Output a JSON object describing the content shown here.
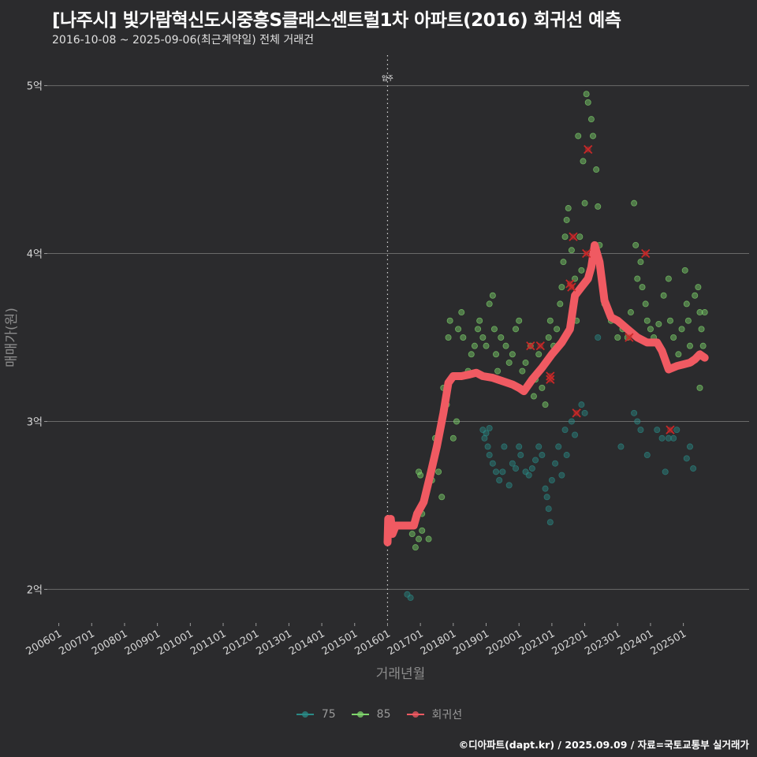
{
  "header": {
    "title": "[나주시] 빛가람혁신도시중흥S클래스센트럴1차 아파트(2016) 회귀선 예측",
    "subtitle": "2016-10-08 ~ 2025-09-06(최근계약일) 전체 거래건"
  },
  "caption": "©디아파트(dapt.kr) / 2025.09.09 / 자료=국토교통부 실거래가",
  "legend": {
    "items": [
      {
        "label": "75",
        "color": "#2a8a86"
      },
      {
        "label": "85",
        "color": "#7fd66c"
      },
      {
        "label": "회귀선",
        "color": "#f05a62"
      }
    ]
  },
  "chart_data": {
    "type": "scatter",
    "title": "[나주시] 빛가람혁신도시중흥S클래스센트럴1차 아파트(2016) 회귀선 예측",
    "xlabel": "거래년월",
    "ylabel": "매매가(원)",
    "x_ticks": [
      "200601",
      "200701",
      "200801",
      "200901",
      "201001",
      "201101",
      "201201",
      "201301",
      "201401",
      "201501",
      "201601",
      "201701",
      "201801",
      "201901",
      "202001",
      "202101",
      "202201",
      "202301",
      "202401",
      "202501"
    ],
    "y_ticks": [
      {
        "value": 2,
        "label": "2억"
      },
      {
        "value": 3,
        "label": "3억"
      },
      {
        "value": 4,
        "label": "4억"
      },
      {
        "value": 5,
        "label": "5억"
      }
    ],
    "xlim": [
      2005.65,
      2027.0
    ],
    "ylim": [
      1.8,
      5.2
    ],
    "annotation": {
      "label": "입주",
      "x": 2016.0
    },
    "colors": {
      "75": "#2a8a86",
      "85": "#7fd66c",
      "regression": "#f05a62",
      "marker": "#c82828"
    },
    "series": [
      {
        "name": "75",
        "points": [
          [
            2016.6,
            1.97
          ],
          [
            2016.7,
            1.95
          ],
          [
            2018.9,
            2.95
          ],
          [
            2018.95,
            2.9
          ],
          [
            2019.0,
            2.93
          ],
          [
            2019.05,
            2.85
          ],
          [
            2019.1,
            2.96
          ],
          [
            2019.1,
            2.8
          ],
          [
            2019.2,
            2.75
          ],
          [
            2019.3,
            2.7
          ],
          [
            2019.4,
            2.65
          ],
          [
            2019.5,
            2.7
          ],
          [
            2019.55,
            2.85
          ],
          [
            2019.7,
            2.62
          ],
          [
            2019.8,
            2.75
          ],
          [
            2019.9,
            2.72
          ],
          [
            2020.0,
            2.85
          ],
          [
            2020.05,
            2.8
          ],
          [
            2020.2,
            2.7
          ],
          [
            2020.3,
            2.68
          ],
          [
            2020.4,
            2.72
          ],
          [
            2020.5,
            2.77
          ],
          [
            2020.6,
            2.85
          ],
          [
            2020.7,
            2.8
          ],
          [
            2020.8,
            2.6
          ],
          [
            2020.85,
            2.55
          ],
          [
            2020.9,
            2.48
          ],
          [
            2020.95,
            2.4
          ],
          [
            2021.0,
            2.65
          ],
          [
            2021.1,
            2.75
          ],
          [
            2021.2,
            2.85
          ],
          [
            2021.3,
            2.68
          ],
          [
            2021.4,
            2.95
          ],
          [
            2021.45,
            2.8
          ],
          [
            2021.6,
            3.0
          ],
          [
            2021.7,
            2.92
          ],
          [
            2021.9,
            3.1
          ],
          [
            2022.0,
            3.05
          ],
          [
            2022.4,
            3.5
          ],
          [
            2023.1,
            2.85
          ],
          [
            2023.5,
            3.05
          ],
          [
            2023.6,
            3.0
          ],
          [
            2023.7,
            2.95
          ],
          [
            2023.9,
            2.8
          ],
          [
            2024.2,
            2.95
          ],
          [
            2024.35,
            2.9
          ],
          [
            2024.45,
            2.7
          ],
          [
            2024.55,
            2.9
          ],
          [
            2024.7,
            2.9
          ],
          [
            2024.8,
            2.95
          ],
          [
            2025.1,
            2.78
          ],
          [
            2025.2,
            2.85
          ],
          [
            2025.3,
            2.72
          ]
        ]
      },
      {
        "name": "85",
        "points": [
          [
            2016.75,
            2.33
          ],
          [
            2016.85,
            2.25
          ],
          [
            2016.95,
            2.3
          ],
          [
            2016.95,
            2.7
          ],
          [
            2017.0,
            2.68
          ],
          [
            2017.05,
            2.45
          ],
          [
            2017.05,
            2.35
          ],
          [
            2017.15,
            2.55
          ],
          [
            2017.25,
            2.3
          ],
          [
            2017.35,
            2.65
          ],
          [
            2017.45,
            2.9
          ],
          [
            2017.55,
            2.7
          ],
          [
            2017.6,
            2.95
          ],
          [
            2017.65,
            2.55
          ],
          [
            2017.7,
            3.2
          ],
          [
            2017.8,
            3.1
          ],
          [
            2017.85,
            3.5
          ],
          [
            2017.9,
            3.6
          ],
          [
            2018.0,
            2.9
          ],
          [
            2018.1,
            3.0
          ],
          [
            2018.15,
            3.55
          ],
          [
            2018.25,
            3.65
          ],
          [
            2018.3,
            3.5
          ],
          [
            2018.45,
            3.3
          ],
          [
            2018.55,
            3.4
          ],
          [
            2018.65,
            3.45
          ],
          [
            2018.75,
            3.55
          ],
          [
            2018.8,
            3.6
          ],
          [
            2018.9,
            3.5
          ],
          [
            2019.0,
            3.45
          ],
          [
            2019.1,
            3.7
          ],
          [
            2019.2,
            3.75
          ],
          [
            2019.25,
            3.55
          ],
          [
            2019.3,
            3.4
          ],
          [
            2019.35,
            3.3
          ],
          [
            2019.45,
            3.5
          ],
          [
            2019.6,
            3.45
          ],
          [
            2019.7,
            3.35
          ],
          [
            2019.8,
            3.4
          ],
          [
            2019.9,
            3.55
          ],
          [
            2020.0,
            3.6
          ],
          [
            2020.1,
            3.3
          ],
          [
            2020.2,
            3.35
          ],
          [
            2020.35,
            3.45
          ],
          [
            2020.45,
            3.15
          ],
          [
            2020.5,
            3.25
          ],
          [
            2020.6,
            3.4
          ],
          [
            2020.7,
            3.2
          ],
          [
            2020.8,
            3.1
          ],
          [
            2020.9,
            3.5
          ],
          [
            2020.95,
            3.6
          ],
          [
            2021.05,
            3.45
          ],
          [
            2021.15,
            3.55
          ],
          [
            2021.25,
            3.7
          ],
          [
            2021.3,
            3.8
          ],
          [
            2021.35,
            3.95
          ],
          [
            2021.4,
            4.1
          ],
          [
            2021.45,
            4.2
          ],
          [
            2021.5,
            4.27
          ],
          [
            2021.6,
            4.02
          ],
          [
            2021.7,
            3.85
          ],
          [
            2021.75,
            3.6
          ],
          [
            2021.85,
            4.1
          ],
          [
            2021.9,
            3.9
          ],
          [
            2022.0,
            4.3
          ],
          [
            2021.95,
            4.55
          ],
          [
            2021.8,
            4.7
          ],
          [
            2022.05,
            4.95
          ],
          [
            2022.1,
            4.9
          ],
          [
            2022.2,
            4.8
          ],
          [
            2022.25,
            4.7
          ],
          [
            2022.35,
            4.5
          ],
          [
            2022.4,
            4.28
          ],
          [
            2022.45,
            4.05
          ],
          [
            2022.6,
            3.7
          ],
          [
            2022.8,
            3.6
          ],
          [
            2023.0,
            3.5
          ],
          [
            2023.15,
            3.55
          ],
          [
            2023.3,
            3.5
          ],
          [
            2023.4,
            3.65
          ],
          [
            2023.5,
            4.3
          ],
          [
            2023.55,
            4.05
          ],
          [
            2023.6,
            3.85
          ],
          [
            2023.7,
            3.95
          ],
          [
            2023.75,
            3.8
          ],
          [
            2023.85,
            3.7
          ],
          [
            2023.9,
            3.6
          ],
          [
            2024.0,
            3.55
          ],
          [
            2024.1,
            3.5
          ],
          [
            2024.25,
            3.58
          ],
          [
            2024.4,
            3.75
          ],
          [
            2024.55,
            3.85
          ],
          [
            2024.6,
            3.6
          ],
          [
            2024.7,
            3.5
          ],
          [
            2024.85,
            3.4
          ],
          [
            2024.95,
            3.55
          ],
          [
            2025.05,
            3.9
          ],
          [
            2025.1,
            3.7
          ],
          [
            2025.15,
            3.6
          ],
          [
            2025.2,
            3.45
          ],
          [
            2025.25,
            3.35
          ],
          [
            2025.35,
            3.75
          ],
          [
            2025.45,
            3.8
          ],
          [
            2025.5,
            3.65
          ],
          [
            2025.55,
            3.55
          ],
          [
            2025.6,
            3.45
          ],
          [
            2025.5,
            3.2
          ],
          [
            2025.65,
            3.65
          ]
        ]
      },
      {
        "name": "회귀선",
        "points": [
          [
            2016.0,
            2.28
          ],
          [
            2016.02,
            2.42
          ],
          [
            2016.05,
            2.36
          ],
          [
            2016.1,
            2.42
          ],
          [
            2016.15,
            2.33
          ],
          [
            2016.25,
            2.38
          ],
          [
            2016.5,
            2.38
          ],
          [
            2016.8,
            2.38
          ],
          [
            2016.9,
            2.45
          ],
          [
            2017.1,
            2.52
          ],
          [
            2017.3,
            2.68
          ],
          [
            2017.5,
            2.85
          ],
          [
            2017.7,
            3.05
          ],
          [
            2017.85,
            3.23
          ],
          [
            2018.0,
            3.27
          ],
          [
            2018.25,
            3.27
          ],
          [
            2018.5,
            3.28
          ],
          [
            2018.7,
            3.29
          ],
          [
            2018.9,
            3.27
          ],
          [
            2019.2,
            3.26
          ],
          [
            2019.5,
            3.24
          ],
          [
            2019.8,
            3.22
          ],
          [
            2020.0,
            3.2
          ],
          [
            2020.15,
            3.18
          ],
          [
            2020.4,
            3.25
          ],
          [
            2020.7,
            3.32
          ],
          [
            2021.0,
            3.4
          ],
          [
            2021.3,
            3.47
          ],
          [
            2021.55,
            3.55
          ],
          [
            2021.7,
            3.75
          ],
          [
            2021.9,
            3.8
          ],
          [
            2022.1,
            3.85
          ],
          [
            2022.2,
            3.92
          ],
          [
            2022.3,
            4.05
          ],
          [
            2022.45,
            3.95
          ],
          [
            2022.6,
            3.72
          ],
          [
            2022.8,
            3.62
          ],
          [
            2023.0,
            3.6
          ],
          [
            2023.3,
            3.55
          ],
          [
            2023.6,
            3.5
          ],
          [
            2023.9,
            3.47
          ],
          [
            2024.2,
            3.47
          ],
          [
            2024.35,
            3.42
          ],
          [
            2024.55,
            3.31
          ],
          [
            2024.8,
            3.33
          ],
          [
            2025.0,
            3.34
          ],
          [
            2025.2,
            3.35
          ],
          [
            2025.35,
            3.37
          ],
          [
            2025.5,
            3.4
          ],
          [
            2025.65,
            3.38
          ]
        ]
      },
      {
        "name": "outlier-markers",
        "points": [
          [
            2020.35,
            3.45
          ],
          [
            2020.65,
            3.45
          ],
          [
            2020.95,
            3.27
          ],
          [
            2020.95,
            3.25
          ],
          [
            2021.55,
            3.82
          ],
          [
            2021.6,
            3.8
          ],
          [
            2021.65,
            4.1
          ],
          [
            2021.75,
            3.05
          ],
          [
            2022.05,
            4.0
          ],
          [
            2022.1,
            4.62
          ],
          [
            2023.35,
            3.5
          ],
          [
            2023.85,
            4.0
          ],
          [
            2024.6,
            2.95
          ]
        ]
      }
    ]
  }
}
